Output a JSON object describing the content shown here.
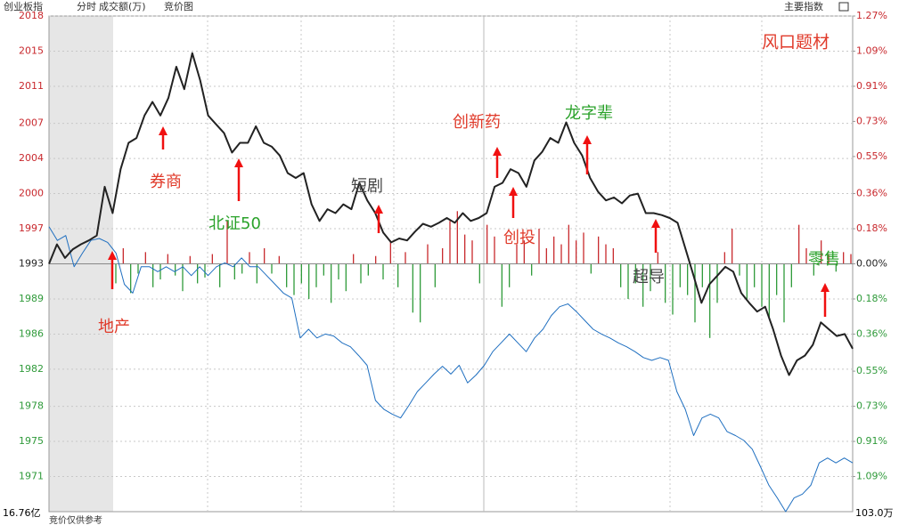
{
  "chart_data": {
    "type": "line",
    "header": {
      "name": "创业板指",
      "mode": "分时",
      "indicator": "成交额(万)",
      "view": "竞价图",
      "menu": "主要指数"
    },
    "title": "风口题材",
    "bottom_left_label": "16.76亿",
    "bottom_right_label": "103.0万",
    "footer_note": "竞价仅供参考",
    "ylim": [
      1967.6,
      2018.4
    ],
    "yticks": [
      {
        "value": 2018.4,
        "label": "2018"
      },
      {
        "value": 2014.8,
        "label": "2015"
      },
      {
        "value": 2011.2,
        "label": "2011"
      },
      {
        "value": 2007.4,
        "label": "2007"
      },
      {
        "value": 2003.8,
        "label": "2004"
      },
      {
        "value": 2000.2,
        "label": "2000"
      },
      {
        "value": 1996.6,
        "label": "1997"
      },
      {
        "value": 1993.0,
        "label": "1993"
      },
      {
        "value": 1989.4,
        "label": "1989"
      },
      {
        "value": 1985.8,
        "label": "1986"
      },
      {
        "value": 1982.2,
        "label": "1982"
      },
      {
        "value": 1978.4,
        "label": "1978"
      },
      {
        "value": 1974.8,
        "label": "1975"
      },
      {
        "value": 1971.2,
        "label": "1971"
      }
    ],
    "y2lim": [
      -1.27,
      1.27
    ],
    "y2ticks": [
      {
        "value": 1.27,
        "label": "1.27%"
      },
      {
        "value": 1.09,
        "label": "1.09%"
      },
      {
        "value": 0.91,
        "label": "0.91%"
      },
      {
        "value": 0.73,
        "label": "0.73%"
      },
      {
        "value": 0.55,
        "label": "0.55%"
      },
      {
        "value": 0.36,
        "label": "0.36%"
      },
      {
        "value": 0.18,
        "label": "0.18%"
      },
      {
        "value": 0,
        "label": "0.00%"
      },
      {
        "value": -0.18,
        "label": "0.18%"
      },
      {
        "value": -0.36,
        "label": "0.36%"
      },
      {
        "value": -0.55,
        "label": "0.55%"
      },
      {
        "value": -0.73,
        "label": "0.73%"
      },
      {
        "value": -0.91,
        "label": "0.91%"
      },
      {
        "value": -1.09,
        "label": "1.09%"
      }
    ],
    "up_color": "#c8282d",
    "down_color": "#2f9a3a",
    "grid": true,
    "price_line": {
      "color": "#222222",
      "values": [
        1993.0,
        1995.0,
        1993.6,
        1994.5,
        1995.0,
        1995.4,
        1995.9,
        2000.9,
        1998.2,
        2002.7,
        2005.4,
        2005.9,
        2008.2,
        2009.6,
        2008.2,
        2010.0,
        2013.2,
        2010.9,
        2014.6,
        2011.8,
        2008.2,
        2007.3,
        2006.4,
        2004.4,
        2005.4,
        2005.4,
        2007.1,
        2005.4,
        2005.0,
        2004.1,
        2002.3,
        2001.8,
        2002.3,
        1999.1,
        1997.4,
        1998.6,
        1998.2,
        1999.1,
        1998.6,
        2001.3,
        1999.5,
        1998.2,
        1996.2,
        1995.2,
        1995.6,
        1995.4,
        1996.3,
        1997.1,
        1996.8,
        1997.2,
        1997.7,
        1997.2,
        1998.2,
        1997.4,
        1997.7,
        1998.2,
        2000.9,
        2001.3,
        2002.7,
        2002.3,
        2000.9,
        2003.6,
        2004.5,
        2005.9,
        2005.4,
        2007.5,
        2005.4,
        2004.1,
        2001.8,
        2000.4,
        1999.5,
        1999.8,
        1999.2,
        2000.0,
        2000.2,
        1998.2,
        1998.2,
        1998.0,
        1997.7,
        1997.2,
        1994.5,
        1991.8,
        1989.0,
        1990.9,
        1991.8,
        1992.7,
        1992.2,
        1990.0,
        1989.0,
        1988.1,
        1988.6,
        1986.3,
        1983.6,
        1981.6,
        1983.1,
        1983.6,
        1984.7,
        1987.0,
        1986.3,
        1985.6,
        1985.8,
        1984.3
      ]
    },
    "avg_line": {
      "color": "#1f6fc0",
      "values": [
        1996.8,
        1995.4,
        1995.9,
        1992.7,
        1994.1,
        1995.4,
        1995.6,
        1995.2,
        1994.1,
        1990.9,
        1990.0,
        1992.7,
        1992.7,
        1992.2,
        1992.7,
        1992.2,
        1992.7,
        1991.8,
        1992.7,
        1991.8,
        1992.7,
        1993.1,
        1992.7,
        1993.6,
        1992.7,
        1992.7,
        1991.8,
        1990.9,
        1990.0,
        1989.5,
        1985.4,
        1986.3,
        1985.4,
        1985.8,
        1985.6,
        1984.9,
        1984.5,
        1983.6,
        1982.6,
        1979.0,
        1978.1,
        1977.6,
        1977.2,
        1978.5,
        1979.9,
        1980.8,
        1981.7,
        1982.5,
        1981.7,
        1982.6,
        1980.8,
        1981.6,
        1982.6,
        1984.0,
        1984.9,
        1985.8,
        1984.9,
        1984.0,
        1985.4,
        1986.3,
        1987.7,
        1988.6,
        1988.9,
        1988.1,
        1987.2,
        1986.3,
        1985.8,
        1985.4,
        1984.9,
        1984.5,
        1984.0,
        1983.4,
        1983.1,
        1983.4,
        1983.1,
        1979.9,
        1978.1,
        1975.4,
        1977.2,
        1977.6,
        1977.2,
        1975.8,
        1975.4,
        1974.9,
        1974.0,
        1972.2,
        1970.3,
        1969.0,
        1967.6,
        1969.0,
        1969.4,
        1970.3,
        1972.6,
        1973.1,
        1972.6,
        1973.1,
        1972.6
      ]
    },
    "bars": {
      "axis": "y2",
      "values": [
        -0.1,
        0.08,
        -0.15,
        -0.05,
        0.06,
        -0.12,
        -0.08,
        0.05,
        -0.06,
        -0.14,
        0.04,
        -0.1,
        -0.07,
        0.05,
        -0.12,
        0.22,
        -0.08,
        -0.05,
        0.06,
        -0.1,
        0.08,
        -0.05,
        0.04,
        -0.12,
        -0.16,
        -0.1,
        -0.18,
        -0.12,
        -0.06,
        -0.2,
        -0.08,
        -0.14,
        0.05,
        -0.1,
        -0.06,
        0.04,
        -0.08,
        0.12,
        -0.12,
        0.06,
        -0.25,
        -0.3,
        0.1,
        -0.12,
        0.08,
        0.22,
        0.27,
        0.15,
        0.12,
        -0.1,
        0.2,
        0.14,
        -0.22,
        -0.12,
        0.1,
        0.12,
        -0.06,
        0.18,
        0.08,
        0.14,
        0.1,
        0.2,
        0.12,
        0.16,
        -0.05,
        0.14,
        0.1,
        0.08,
        -0.12,
        -0.18,
        -0.1,
        -0.22,
        -0.14,
        0.06,
        -0.2,
        -0.26,
        -0.12,
        -0.16,
        -0.3,
        -0.12,
        -0.38,
        -0.2,
        0.06,
        0.18,
        -0.06,
        -0.18,
        -0.12,
        -0.22,
        -0.28,
        -0.16,
        -0.3,
        -0.12,
        0.2,
        0.08,
        -0.06,
        0.12,
        0.05,
        -0.04,
        0.06,
        0.05
      ]
    },
    "annotations": [
      {
        "text": "地产",
        "color": "#e03a2a"
      },
      {
        "text": "券商",
        "color": "#e03a2a"
      },
      {
        "text": "北证50",
        "color": "#2aa22a"
      },
      {
        "text": "短剧",
        "color": "#444444"
      },
      {
        "text": "创新药",
        "color": "#e03a2a"
      },
      {
        "text": "创投",
        "color": "#e03a2a"
      },
      {
        "text": "龙字辈",
        "color": "#2aa22a"
      },
      {
        "text": "超导",
        "color": "#444444"
      },
      {
        "text": "零售",
        "color": "#2aa22a"
      }
    ]
  }
}
